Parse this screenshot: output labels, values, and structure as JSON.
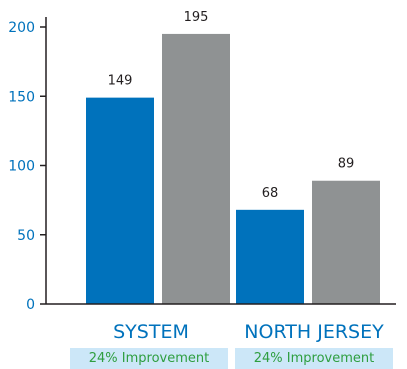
{
  "chart_data": {
    "type": "bar",
    "title": "",
    "xlabel": "",
    "ylabel": "",
    "categories": [
      "SYSTEM",
      "NORTH JERSEY"
    ],
    "series": [
      {
        "values": [
          149,
          68
        ],
        "color": "#0072bc"
      },
      {
        "values": [
          195,
          89
        ],
        "color": "#8f9293"
      }
    ],
    "ylim": [
      0,
      200
    ],
    "yticks": [
      0,
      50,
      100,
      150,
      200
    ],
    "grid": false,
    "legend": "none",
    "data_labels": true,
    "annotations": [
      "24% Improvement",
      "24% Improvement"
    ],
    "colors": {
      "axis_text": "#0072bc",
      "axis_line": "#231f20",
      "data_label": "#231f20",
      "annotation_text": "#2e9e3f",
      "annotation_background": "#cce7f8"
    }
  }
}
